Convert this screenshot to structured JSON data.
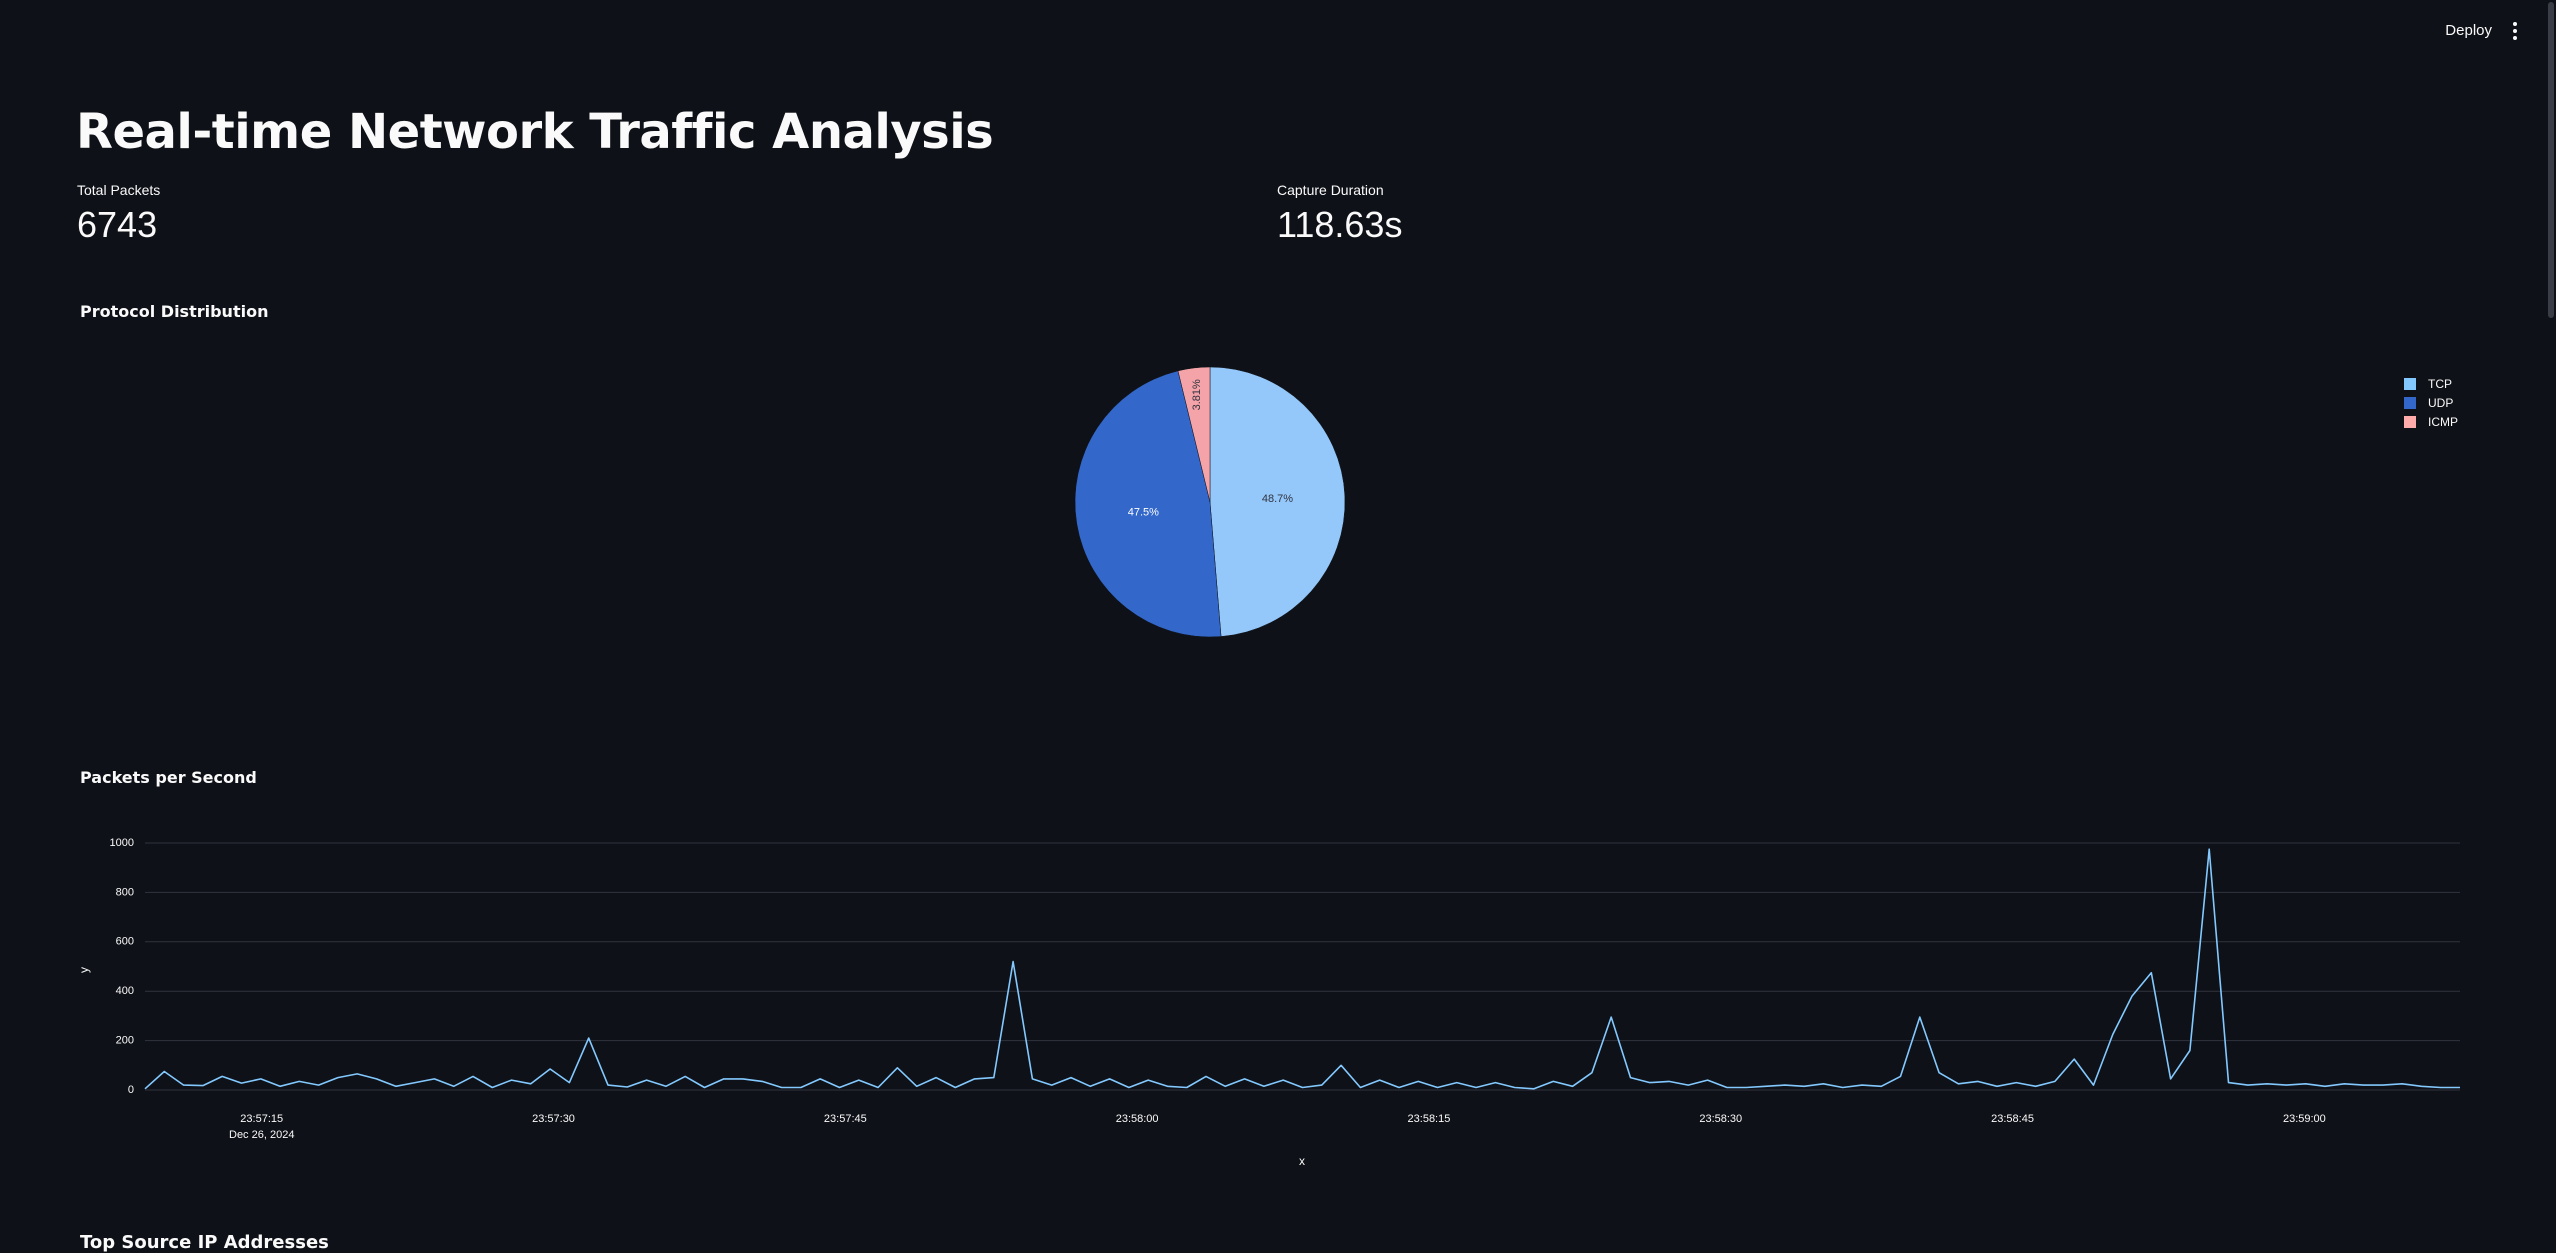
{
  "header": {
    "deploy_label": "Deploy",
    "menu_icon": "more-vertical-icon"
  },
  "page": {
    "title": "Real-time Network Traffic Analysis"
  },
  "metrics": [
    {
      "label": "Total Packets",
      "value": "6743"
    },
    {
      "label": "Capture Duration",
      "value": "118.63s"
    }
  ],
  "sections": {
    "protocol_title": "Protocol Distribution",
    "pps_title": "Packets per Second",
    "next_title": "Top Source IP Addresses"
  },
  "colors": {
    "background": "#0e1117",
    "tcp": "#83c9ff",
    "udp": "#0068c9",
    "icmp": "#ffabab",
    "line": "#83c9ff",
    "grid": "#31333f"
  },
  "chart_data": [
    {
      "type": "pie",
      "title": "Protocol Distribution",
      "labels": [
        "TCP",
        "UDP",
        "ICMP"
      ],
      "values": [
        48.7,
        47.5,
        3.81
      ],
      "value_labels": [
        "48.7%",
        "47.5%",
        "3.81%"
      ],
      "colors": [
        "#83c9ff",
        "#0068c9",
        "#ffabab"
      ],
      "legend_position": "top-right"
    },
    {
      "type": "line",
      "title": "Packets per Second",
      "xlabel": "x",
      "ylabel": "y",
      "ylim": [
        0,
        1000
      ],
      "y_ticks": [
        0,
        200,
        400,
        600,
        800,
        1000
      ],
      "x_tick_labels": [
        "23:57:15",
        "23:57:30",
        "23:57:45",
        "23:58:00",
        "23:58:15",
        "23:58:30",
        "23:58:45",
        "23:59:00"
      ],
      "x_tick_sublabel": "Dec 26, 2024",
      "x_start": "23:57:09",
      "x_end": "23:59:08",
      "y": [
        5,
        75,
        20,
        18,
        55,
        28,
        45,
        15,
        35,
        20,
        50,
        65,
        45,
        15,
        30,
        45,
        15,
        55,
        10,
        40,
        25,
        85,
        30,
        210,
        20,
        12,
        40,
        15,
        55,
        10,
        45,
        45,
        35,
        10,
        10,
        45,
        10,
        40,
        10,
        90,
        15,
        50,
        10,
        45,
        50,
        520,
        45,
        20,
        50,
        15,
        45,
        10,
        40,
        15,
        10,
        55,
        15,
        45,
        15,
        40,
        10,
        20,
        100,
        10,
        40,
        10,
        35,
        10,
        30,
        10,
        30,
        10,
        5,
        35,
        15,
        70,
        295,
        50,
        30,
        35,
        20,
        40,
        10,
        10,
        15,
        20,
        15,
        25,
        10,
        20,
        15,
        55,
        295,
        70,
        25,
        35,
        15,
        30,
        15,
        35,
        125,
        20,
        225,
        380,
        475,
        45,
        160,
        975,
        30,
        20,
        25,
        20,
        25,
        15,
        25,
        20,
        20,
        25,
        15,
        10,
        10
      ]
    }
  ]
}
